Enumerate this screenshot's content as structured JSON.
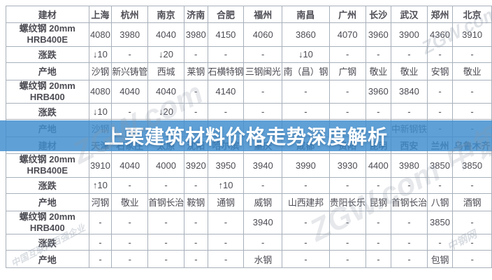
{
  "banner": {
    "text": "上栗建筑材料价格走势深度解析",
    "background": "#408ece",
    "text_color": "#ffffff"
  },
  "watermarks": {
    "brand": "ZGW.com",
    "brand_cn": "中钢网",
    "tagline": "中国互联网百强企业"
  },
  "colors": {
    "materials_header": "#c42b2b",
    "city_link": "#36479f",
    "price_up": "#e03a3a",
    "price_down": "#23994f",
    "border": "#a8b0ba"
  },
  "table": {
    "corner_label": "建材",
    "change_label": "涨跌",
    "origin_label": "产地",
    "sections": [
      {
        "cities": [
          "上海",
          "杭州",
          "南京",
          "济南",
          "合肥",
          "福州",
          "南昌",
          "广州",
          "长沙",
          "武汉",
          "郑州",
          "北京"
        ],
        "rows": [
          {
            "type": "price",
            "label_line1": "螺纹钢 20mm",
            "label_line2": "HRB400E",
            "values": [
              "4080",
              "3980",
              "4040",
              "3980",
              "4150",
              "4060",
              "3860",
              "4070",
              "3960",
              "3900",
              "4360",
              "3910"
            ]
          },
          {
            "type": "change",
            "label": "涨跌",
            "values": [
              "↓10",
              "-",
              "↓20",
              "-",
              "-",
              "-",
              "↓10",
              "-",
              "-",
              "-",
              "-",
              "-"
            ]
          },
          {
            "type": "origin",
            "label": "产地",
            "values": [
              "沙钢",
              "新兴铸管",
              "西城",
              "莱钢",
              "石横特钢",
              "三钢闽光",
              "南（昌）钢",
              "广钢",
              "敬业",
              "敬业",
              "安钢",
              "敬业"
            ]
          },
          {
            "type": "price",
            "label_line1": "螺纹钢 20mm",
            "label_line2": "HRB400",
            "values": [
              "4080",
              "4040",
              "4040",
              "-",
              "4140",
              "-",
              "-",
              "-",
              "3960",
              "3840",
              "-",
              "-"
            ]
          },
          {
            "type": "change",
            "label": "涨跌",
            "values": [
              "↓10",
              "-",
              "↓20",
              "-",
              "-",
              "-",
              "-",
              "-",
              "-",
              "-",
              "-",
              "-"
            ]
          },
          {
            "type": "origin",
            "label": "产地",
            "values": [
              "沙钢",
              "",
              "",
              "",
              "",
              "",
              "",
              "",
              "",
              "中新钢铁",
              "-",
              "-"
            ]
          }
        ]
      },
      {
        "cities": [
          "天津",
          "石家庄",
          "太原",
          "沈阳",
          "哈尔滨",
          "重庆",
          "成都",
          "贵阳",
          "昆明",
          "西安",
          "兰州",
          "乌鲁木齐"
        ],
        "rows": [
          {
            "type": "price",
            "label_line1": "螺纹钢 20mm",
            "label_line2": "HRB400E",
            "values": [
              "3910",
              "4040",
              "4000",
              "3920",
              "3950",
              "3940",
              "3990",
              "3930",
              "4400",
              "3980",
              "3850",
              "3850"
            ]
          },
          {
            "type": "change",
            "label": "涨跌",
            "values": [
              "↑10",
              "-",
              "-",
              "-",
              "↑10",
              "-",
              "-",
              "-",
              "-",
              "-",
              "-",
              "-"
            ]
          },
          {
            "type": "origin",
            "label": "产地",
            "values": [
              "河钢",
              "敬业",
              "首钢长治",
              "鞍钢",
              "通钢",
              "威钢",
              "山西建邦",
              "贵阳长乐",
              "昆钢",
              "首钢长治",
              "八钢",
              "酒钢"
            ]
          },
          {
            "type": "price",
            "label_line1": "螺纹钢 20mm",
            "label_line2": "HRB400",
            "values": [
              "-",
              "-",
              "-",
              "-",
              "-",
              "3940",
              "-",
              "-",
              "-",
              "-",
              "3850",
              "-"
            ]
          },
          {
            "type": "change",
            "label": "涨跌",
            "values": [
              "-",
              "-",
              "-",
              "-",
              "-",
              "-",
              "-",
              "-",
              "-",
              "-",
              "-",
              "-"
            ]
          },
          {
            "type": "origin",
            "label": "产地",
            "values": [
              "-",
              "-",
              "-",
              "-",
              "-",
              "水钢",
              "-",
              "-",
              "-",
              "-",
              "包钢",
              "-"
            ]
          }
        ]
      }
    ]
  }
}
